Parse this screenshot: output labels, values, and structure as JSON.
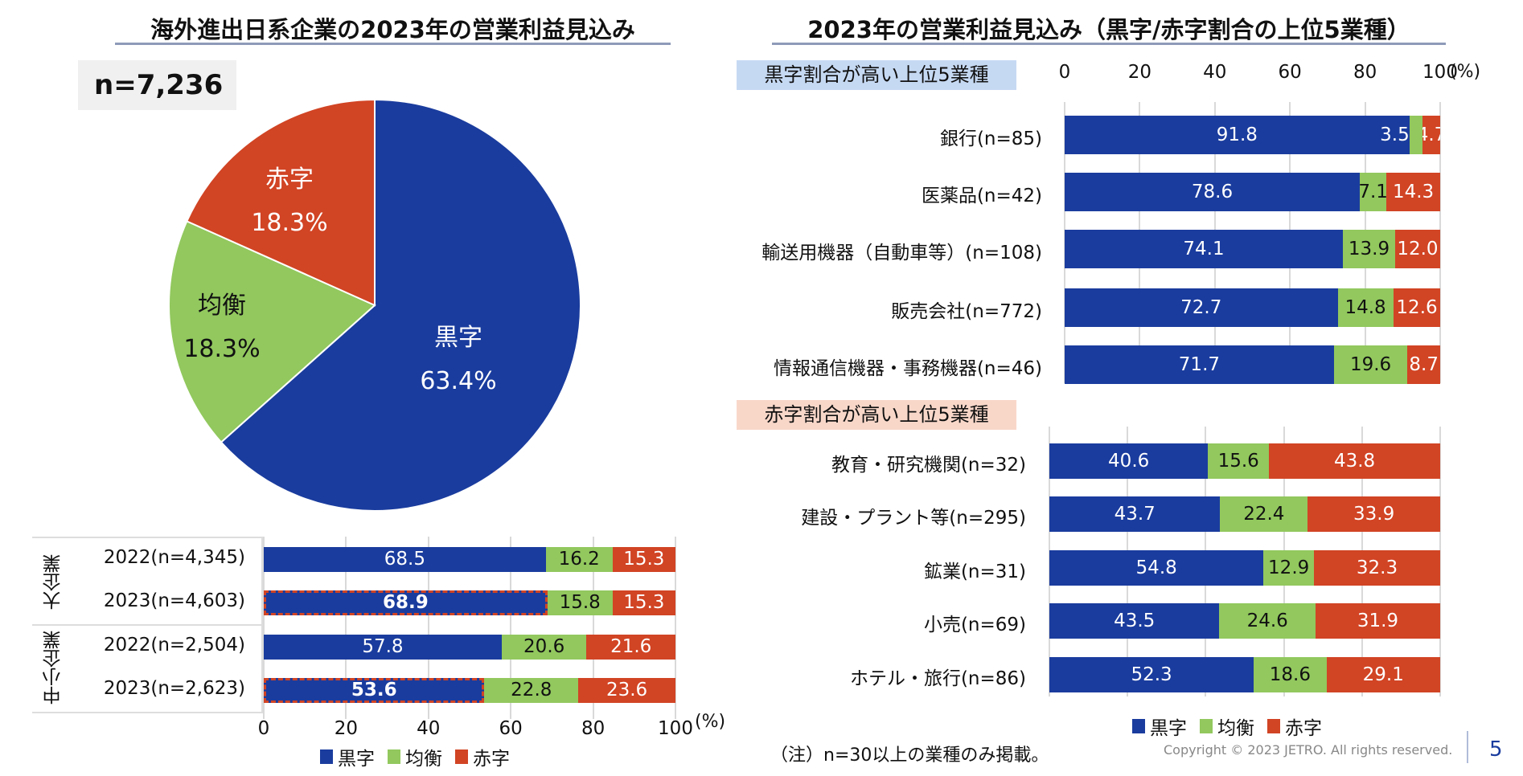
{
  "colors": {
    "profit": "#1a3c9e",
    "even": "#92c85e",
    "loss": "#d14424"
  },
  "left_title": "海外進出日系企業の2023年の営業利益見込み",
  "right_title": "2023年の営業利益見込み（黒字/赤字割合の上位5業種）",
  "footnote": "（注）n=30以上の業種のみ掲載。",
  "copyright": "Copyright © 2023 JETRO. All rights reserved.",
  "page_number": "5",
  "unit": "(%)",
  "legend": [
    "黒字",
    "均衡",
    "赤字"
  ],
  "chart_data": [
    {
      "type": "pie",
      "annotation": "n=7,236",
      "slices": [
        {
          "label": "黒字",
          "value": 63.4,
          "text": "63.4%"
        },
        {
          "label": "均衡",
          "value": 18.3,
          "text": "18.3%"
        },
        {
          "label": "赤字",
          "value": 18.3,
          "text": "18.3%"
        }
      ]
    },
    {
      "type": "bar",
      "stacked": true,
      "orientation": "horizontal",
      "xlim": [
        0,
        100
      ],
      "ticks": [
        "0",
        "20",
        "40",
        "60",
        "80",
        "100"
      ],
      "xlabel": "(%)",
      "groups": [
        "大企業",
        "中小企業"
      ],
      "categories": [
        "2022(n=4,345)",
        "2023(n=4,603)",
        "2022(n=2,504)",
        "2023(n=2,623)"
      ],
      "highlighted": [
        false,
        true,
        false,
        true
      ],
      "series": [
        {
          "name": "黒字",
          "values": [
            68.5,
            68.9,
            57.8,
            53.6
          ]
        },
        {
          "name": "均衡",
          "values": [
            16.2,
            15.8,
            20.6,
            22.8
          ]
        },
        {
          "name": "赤字",
          "values": [
            15.3,
            15.3,
            21.6,
            23.6
          ]
        }
      ]
    },
    {
      "type": "bar",
      "stacked": true,
      "orientation": "horizontal",
      "title": "黒字割合が高い上位5業種",
      "xlim": [
        0,
        100
      ],
      "ticks": [
        "0",
        "20",
        "40",
        "60",
        "80",
        "100"
      ],
      "xlabel": "(%)",
      "categories": [
        "銀行(n=85)",
        "医薬品(n=42)",
        "輸送用機器（自動車等）(n=108)",
        "販売会社(n=772)",
        "情報通信機器・事務機器(n=46)"
      ],
      "series": [
        {
          "name": "黒字",
          "values": [
            91.8,
            78.6,
            74.1,
            72.7,
            71.7
          ]
        },
        {
          "name": "均衡",
          "values": [
            3.5,
            7.1,
            13.9,
            14.8,
            19.6
          ]
        },
        {
          "name": "赤字",
          "values": [
            4.7,
            14.3,
            12.0,
            12.6,
            8.7
          ]
        }
      ]
    },
    {
      "type": "bar",
      "stacked": true,
      "orientation": "horizontal",
      "title": "赤字割合が高い上位5業種",
      "xlim": [
        0,
        100
      ],
      "categories": [
        "教育・研究機関(n=32)",
        "建設・プラント等(n=295)",
        "鉱業(n=31)",
        "小売(n=69)",
        "ホテル・旅行(n=86)"
      ],
      "series": [
        {
          "name": "黒字",
          "values": [
            40.6,
            43.7,
            54.8,
            43.5,
            52.3
          ]
        },
        {
          "name": "均衡",
          "values": [
            15.6,
            22.4,
            12.9,
            24.6,
            18.6
          ]
        },
        {
          "name": "赤字",
          "values": [
            43.8,
            33.9,
            32.3,
            31.9,
            29.1
          ]
        }
      ]
    }
  ]
}
